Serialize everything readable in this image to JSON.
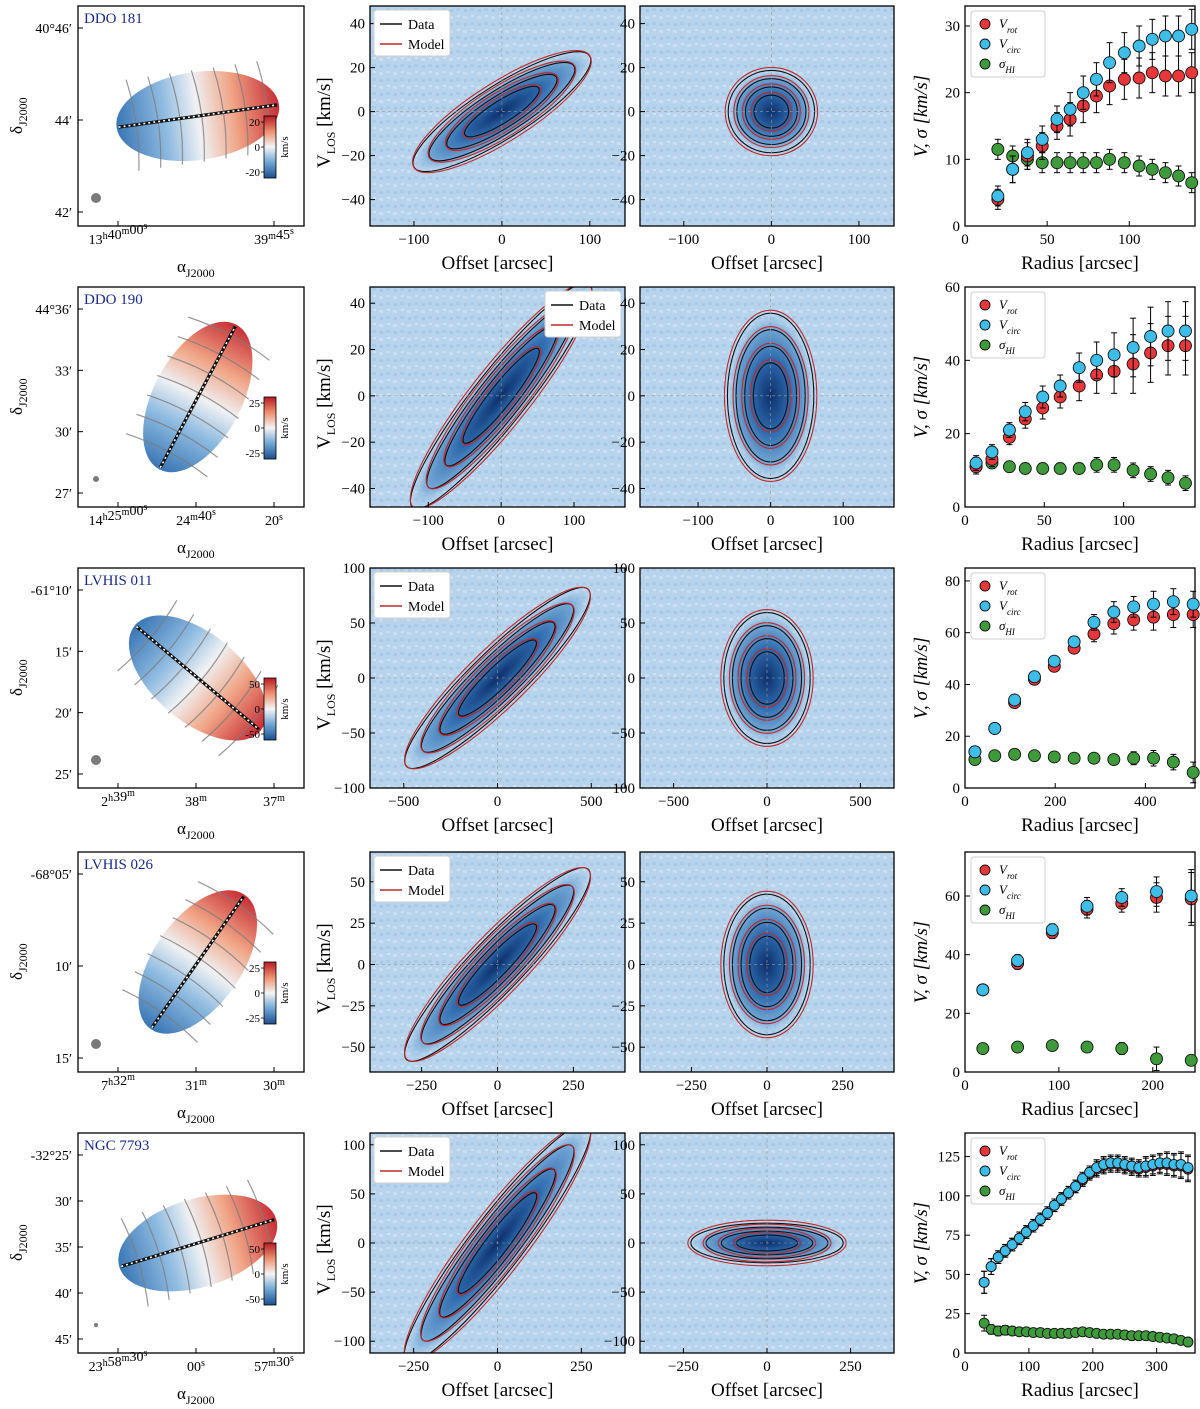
{
  "figure": {
    "columns": [
      "velocity_field",
      "pv_major",
      "pv_minor",
      "rotation_curve"
    ],
    "common": {
      "vel_xlabel": "α",
      "vel_xlabel_sub": "J2000",
      "vel_ylabel": "δ",
      "vel_ylabel_sub": "J2000",
      "cbar_unit": "km/s",
      "pv_xlabel": "Offset [arcsec]",
      "pv_ylabel": "V",
      "pv_ylabel_sub": "LOS",
      "pv_ylabel_unit": " [km/s]",
      "legend_data": "Data",
      "legend_model": "Model",
      "rc_xlabel": "Radius [arcsec]",
      "rc_ylabel": "V, σ [km/s]",
      "leg_vrot": "V",
      "leg_vrot_sub": "rot",
      "leg_vcirc": "V",
      "leg_vcirc_sub": "circ",
      "leg_sigma": "σ",
      "leg_sigma_sub": "HI"
    },
    "colors": {
      "vrot": "#e8373a",
      "vcirc": "#3dbde8",
      "sigma": "#3f9a3c",
      "data_contour": "#111111",
      "model_contour": "#c0282a",
      "galaxy_name": "#1a2a8a"
    }
  },
  "chart_data": [
    {
      "type": "panel-row",
      "galaxy": "DDO 181",
      "vel_field": {
        "dec_ticks": [
          "40°46′",
          "44′",
          "42′"
        ],
        "ra_ticks": [
          {
            "h": "13",
            "hs": "h",
            "m": "40",
            "ms": "m",
            "s": "00",
            "ss": "s"
          },
          {
            "m": "39",
            "ms": "m",
            "s": "45",
            "ss": "s"
          }
        ],
        "cbar_ticks": [
          "20",
          "0",
          "-20"
        ],
        "kinematic_axis_angle_deg": 8
      },
      "pv_major": {
        "xlim": [
          -150,
          140
        ],
        "xticks": [
          -100,
          0,
          100
        ],
        "ylim": [
          -52,
          48
        ],
        "yticks": [
          -40,
          -20,
          0,
          20,
          40
        ],
        "legend": "top-left",
        "type": "rotating",
        "vmax": 22
      },
      "pv_minor": {
        "xlim": [
          -150,
          140
        ],
        "xticks": [
          -100,
          0,
          100
        ],
        "ylim": [
          -52,
          48
        ],
        "yticks": [
          -40,
          -20,
          0,
          20,
          40
        ],
        "type": "compact",
        "vmax": 22
      },
      "rotation_curve": {
        "xlim": [
          0,
          140
        ],
        "xticks": [
          0,
          50,
          100
        ],
        "ylim": [
          0,
          33
        ],
        "yticks": [
          0,
          10,
          20,
          30
        ],
        "legend": "top-left",
        "radius": [
          20,
          29,
          38,
          47,
          56,
          64,
          72,
          80,
          88,
          97,
          106,
          114,
          122,
          130,
          138
        ],
        "vrot": [
          4,
          8.5,
          10.5,
          12,
          15,
          16,
          18,
          19.5,
          21,
          22,
          22.2,
          23,
          22.5,
          22.5,
          23
        ],
        "vrot_err": [
          1.5,
          2,
          2,
          2,
          2,
          2.5,
          2.5,
          2.5,
          2.8,
          3,
          3,
          3,
          3,
          3,
          3
        ],
        "vcirc": [
          4.5,
          8.5,
          11,
          13,
          16,
          17.5,
          20,
          22,
          24.5,
          26,
          27,
          28,
          28.5,
          28.5,
          29.5
        ],
        "vcirc_err": [
          1.5,
          2,
          2,
          2,
          2,
          2.5,
          2.5,
          2.5,
          3,
          3,
          3,
          3,
          3,
          3,
          3
        ],
        "sigma": [
          11.5,
          10.5,
          10,
          9.5,
          9.5,
          9.5,
          9.5,
          9.5,
          10,
          9.5,
          9,
          8.5,
          8,
          7.5,
          6.5
        ],
        "sigma_err": [
          1.5,
          1.5,
          1.5,
          1.5,
          1.5,
          1.5,
          1.5,
          1.5,
          1.5,
          1.5,
          1.5,
          1.5,
          1.5,
          1.5,
          1.5
        ]
      }
    },
    {
      "type": "panel-row",
      "galaxy": "DDO 190",
      "vel_field": {
        "dec_ticks": [
          "44°36′",
          "33′",
          "30′",
          "27′"
        ],
        "ra_ticks": [
          {
            "h": "14",
            "hs": "h",
            "m": "25",
            "ms": "m",
            "s": "00",
            "ss": "s"
          },
          {
            "m": "24",
            "ms": "m",
            "s": "40",
            "ss": "s"
          },
          {
            "s": "20",
            "ss": "s"
          }
        ],
        "cbar_ticks": [
          "25",
          "0",
          "-25"
        ],
        "kinematic_axis_angle_deg": 62
      },
      "pv_major": {
        "xlim": [
          -180,
          170
        ],
        "xticks": [
          -100,
          0,
          100
        ],
        "ylim": [
          -48,
          47
        ],
        "yticks": [
          -40,
          -20,
          0,
          20,
          40
        ],
        "legend": "top-right",
        "type": "rotating",
        "vmax": 42
      },
      "pv_minor": {
        "xlim": [
          -180,
          170
        ],
        "xticks": [
          -100,
          0,
          100
        ],
        "ylim": [
          -48,
          47
        ],
        "yticks": [
          -40,
          -20,
          0,
          20,
          40
        ],
        "type": "compact",
        "vmax": 42
      },
      "rotation_curve": {
        "xlim": [
          0,
          145
        ],
        "xticks": [
          0,
          50,
          100
        ],
        "ylim": [
          0,
          60
        ],
        "yticks": [
          0,
          20,
          40,
          60
        ],
        "legend": "top-left",
        "radius": [
          7,
          17,
          28,
          38,
          49,
          60,
          72,
          83,
          94,
          106,
          117,
          128,
          139
        ],
        "vrot": [
          11,
          13,
          19,
          24,
          27,
          30,
          33,
          36,
          37,
          39,
          42,
          44,
          44
        ],
        "vrot_err": [
          2,
          2,
          2,
          2.5,
          3,
          3,
          4,
          5,
          6,
          8,
          8,
          8,
          8
        ],
        "vcirc": [
          12,
          15,
          21,
          26,
          30,
          33,
          38,
          40,
          41.5,
          43.5,
          46.5,
          48,
          48
        ],
        "vcirc_err": [
          2,
          2,
          2,
          2.5,
          3,
          3,
          4,
          5,
          6,
          8,
          8,
          8,
          8
        ],
        "sigma": [
          11,
          12,
          11,
          10.5,
          10.5,
          10.5,
          10.5,
          11.5,
          11.5,
          10,
          9,
          8,
          6.5
        ],
        "sigma_err": [
          2,
          1.5,
          1.5,
          1.5,
          1.5,
          1.5,
          1.5,
          2,
          2,
          2,
          2,
          2,
          2
        ]
      }
    },
    {
      "type": "panel-row",
      "galaxy": "LVHIS 011",
      "vel_field": {
        "dec_ticks": [
          "-61°10′",
          "15′",
          "20′",
          "25′"
        ],
        "ra_ticks": [
          {
            "h": "2",
            "hs": "h",
            "m": "39",
            "ms": "m"
          },
          {
            "m": "38",
            "ms": "m"
          },
          {
            "m": "37",
            "ms": "m"
          }
        ],
        "cbar_ticks": [
          "50",
          "0",
          "-50"
        ],
        "kinematic_axis_angle_deg": -40
      },
      "pv_major": {
        "xlim": [
          -680,
          680
        ],
        "xticks": [
          -500,
          0,
          500
        ],
        "ylim": [
          -100,
          100
        ],
        "yticks": [
          -100,
          -50,
          0,
          50,
          100
        ],
        "legend": "top-left",
        "type": "rotating",
        "vmax": 70
      },
      "pv_minor": {
        "xlim": [
          -680,
          680
        ],
        "xticks": [
          -500,
          0,
          500
        ],
        "ylim": [
          -100,
          100
        ],
        "yticks": [
          -100,
          -50,
          0,
          50,
          100
        ],
        "type": "compact",
        "vmax": 70
      },
      "rotation_curve": {
        "xlim": [
          0,
          510
        ],
        "xticks": [
          0,
          200,
          400
        ],
        "ylim": [
          0,
          85
        ],
        "yticks": [
          0,
          20,
          40,
          60,
          80
        ],
        "legend": "top-left",
        "radius": [
          22,
          66,
          110,
          154,
          198,
          242,
          286,
          330,
          374,
          418,
          462,
          506
        ],
        "vrot": [
          14,
          23,
          33,
          42,
          47,
          54,
          59.5,
          63.5,
          65,
          66,
          67,
          67
        ],
        "vrot_err": [
          1,
          1,
          1,
          1.5,
          2,
          2,
          3,
          4,
          4,
          5,
          5,
          5
        ],
        "vcirc": [
          14,
          23,
          34,
          43,
          49,
          56.5,
          64,
          68,
          70,
          71,
          72,
          71
        ],
        "vcirc_err": [
          1,
          1,
          1,
          1.5,
          2,
          2,
          3,
          4,
          4,
          5,
          5,
          5
        ],
        "sigma": [
          11,
          12.5,
          13,
          12.5,
          12,
          11.5,
          11.5,
          11,
          11.5,
          11.5,
          10,
          6
        ],
        "sigma_err": [
          1,
          1,
          1,
          1,
          1,
          1.5,
          2,
          2,
          2.5,
          3,
          3,
          4
        ]
      }
    },
    {
      "type": "panel-row",
      "galaxy": "LVHIS 026",
      "vel_field": {
        "dec_ticks": [
          "-68°05′",
          "10′",
          "15′"
        ],
        "ra_ticks": [
          {
            "h": "7",
            "hs": "h",
            "m": "32",
            "ms": "m"
          },
          {
            "m": "31",
            "ms": "m"
          },
          {
            "m": "30",
            "ms": "m"
          }
        ],
        "cbar_ticks": [
          "25",
          "0",
          "-25"
        ],
        "kinematic_axis_angle_deg": 55
      },
      "pv_major": {
        "xlim": [
          -420,
          420
        ],
        "xticks": [
          -250,
          0,
          250
        ],
        "ylim": [
          -65,
          68
        ],
        "yticks": [
          -50,
          -25,
          0,
          25,
          50
        ],
        "legend": "top-left",
        "type": "rotating",
        "vmax": 50
      },
      "pv_minor": {
        "xlim": [
          -420,
          420
        ],
        "xticks": [
          -250,
          0,
          250
        ],
        "ylim": [
          -65,
          68
        ],
        "yticks": [
          -50,
          -25,
          0,
          25,
          50
        ],
        "type": "compact",
        "vmax": 50
      },
      "rotation_curve": {
        "xlim": [
          0,
          245
        ],
        "xticks": [
          0,
          100,
          200
        ],
        "ylim": [
          0,
          75
        ],
        "yticks": [
          0,
          20,
          40,
          60
        ],
        "legend": "top-left",
        "radius": [
          19,
          56,
          93,
          130,
          167,
          204,
          241
        ],
        "vrot": [
          28,
          37,
          47.5,
          55.5,
          57.5,
          59.5,
          59
        ],
        "vrot_err": [
          1.5,
          2,
          2,
          3,
          3,
          5,
          9
        ],
        "vcirc": [
          28,
          38,
          48.5,
          56.5,
          59.5,
          61.5,
          60
        ],
        "vcirc_err": [
          1.5,
          2,
          2,
          3,
          3,
          5,
          9
        ],
        "sigma": [
          8,
          8.5,
          9,
          8.5,
          8,
          4.5,
          4
        ],
        "sigma_err": [
          1,
          1,
          1,
          1.5,
          2,
          4,
          1
        ]
      }
    },
    {
      "type": "panel-row",
      "galaxy": "NGC 7793",
      "vel_field": {
        "dec_ticks": [
          "-32°25′",
          "30′",
          "35′",
          "40′",
          "45′"
        ],
        "ra_ticks": [
          {
            "h": "23",
            "hs": "h",
            "m": "58",
            "ms": "m",
            "s": "30",
            "ss": "s"
          },
          {
            "s": "00",
            "ss": "s"
          },
          {
            "m": "57",
            "ms": "m",
            "s": "30",
            "ss": "s"
          }
        ],
        "cbar_ticks": [
          "50",
          "0",
          "-50"
        ],
        "kinematic_axis_angle_deg": 17
      },
      "pv_major": {
        "xlim": [
          -380,
          380
        ],
        "xticks": [
          -250,
          0,
          250
        ],
        "ylim": [
          -112,
          112
        ],
        "yticks": [
          -100,
          -50,
          0,
          50,
          100
        ],
        "legend": "top-left",
        "type": "rotating",
        "vmax": 105
      },
      "pv_minor": {
        "xlim": [
          -380,
          380
        ],
        "xticks": [
          -250,
          0,
          250
        ],
        "ylim": [
          -112,
          112
        ],
        "yticks": [
          -100,
          -50,
          0,
          50,
          100
        ],
        "type": "compact",
        "vmax": 105
      },
      "rotation_curve": {
        "xlim": [
          0,
          360
        ],
        "xticks": [
          0,
          100,
          200,
          300
        ],
        "ylim": [
          0,
          140
        ],
        "yticks": [
          0,
          25,
          50,
          75,
          100,
          125
        ],
        "legend": "top-left",
        "radius": [
          30,
          41,
          52,
          63,
          74,
          85,
          96,
          107,
          118,
          129,
          140,
          151,
          162,
          173,
          184,
          195,
          206,
          217,
          228,
          239,
          250,
          261,
          272,
          283,
          294,
          305,
          316,
          327,
          338,
          349
        ],
        "vrot": [
          45,
          55,
          61,
          65,
          69,
          73,
          77,
          81,
          85,
          89,
          94,
          98,
          102,
          106,
          110,
          114,
          117,
          119,
          120,
          120,
          119,
          118,
          117,
          118,
          119,
          120,
          120,
          119,
          119,
          117
        ],
        "vrot_err": [
          7,
          5,
          4,
          4,
          4,
          4,
          4,
          4,
          4,
          4,
          4,
          4,
          4,
          4,
          4,
          4,
          5,
          5,
          5,
          5,
          5,
          5,
          5,
          6,
          6,
          6,
          7,
          7,
          8,
          8
        ],
        "vcirc": [
          45,
          55,
          61,
          65,
          69,
          73,
          77,
          81,
          85,
          89,
          94,
          98,
          102,
          106,
          111,
          115,
          118,
          120,
          121,
          121,
          120,
          119,
          118,
          119,
          120,
          121,
          121,
          120,
          120,
          118
        ],
        "vcirc_err": [
          7,
          5,
          4,
          4,
          4,
          4,
          4,
          4,
          4,
          4,
          4,
          4,
          4,
          4,
          4,
          4,
          5,
          5,
          5,
          5,
          5,
          5,
          5,
          6,
          6,
          6,
          7,
          7,
          8,
          8
        ],
        "sigma": [
          19,
          15,
          14,
          14.5,
          14,
          13.5,
          13.5,
          13,
          13,
          12.5,
          12.5,
          12.5,
          12.5,
          13,
          13.5,
          13,
          12.5,
          12,
          12,
          12,
          11.5,
          11,
          11,
          11,
          10.5,
          10,
          9.5,
          9,
          8,
          7
        ],
        "sigma_err": [
          5,
          3,
          3,
          3,
          2,
          2,
          2,
          2,
          2,
          2,
          2,
          2,
          2,
          2,
          2,
          2,
          2,
          2,
          2,
          2,
          2,
          2,
          2,
          2,
          2,
          2,
          2,
          2,
          2,
          2
        ]
      }
    }
  ]
}
